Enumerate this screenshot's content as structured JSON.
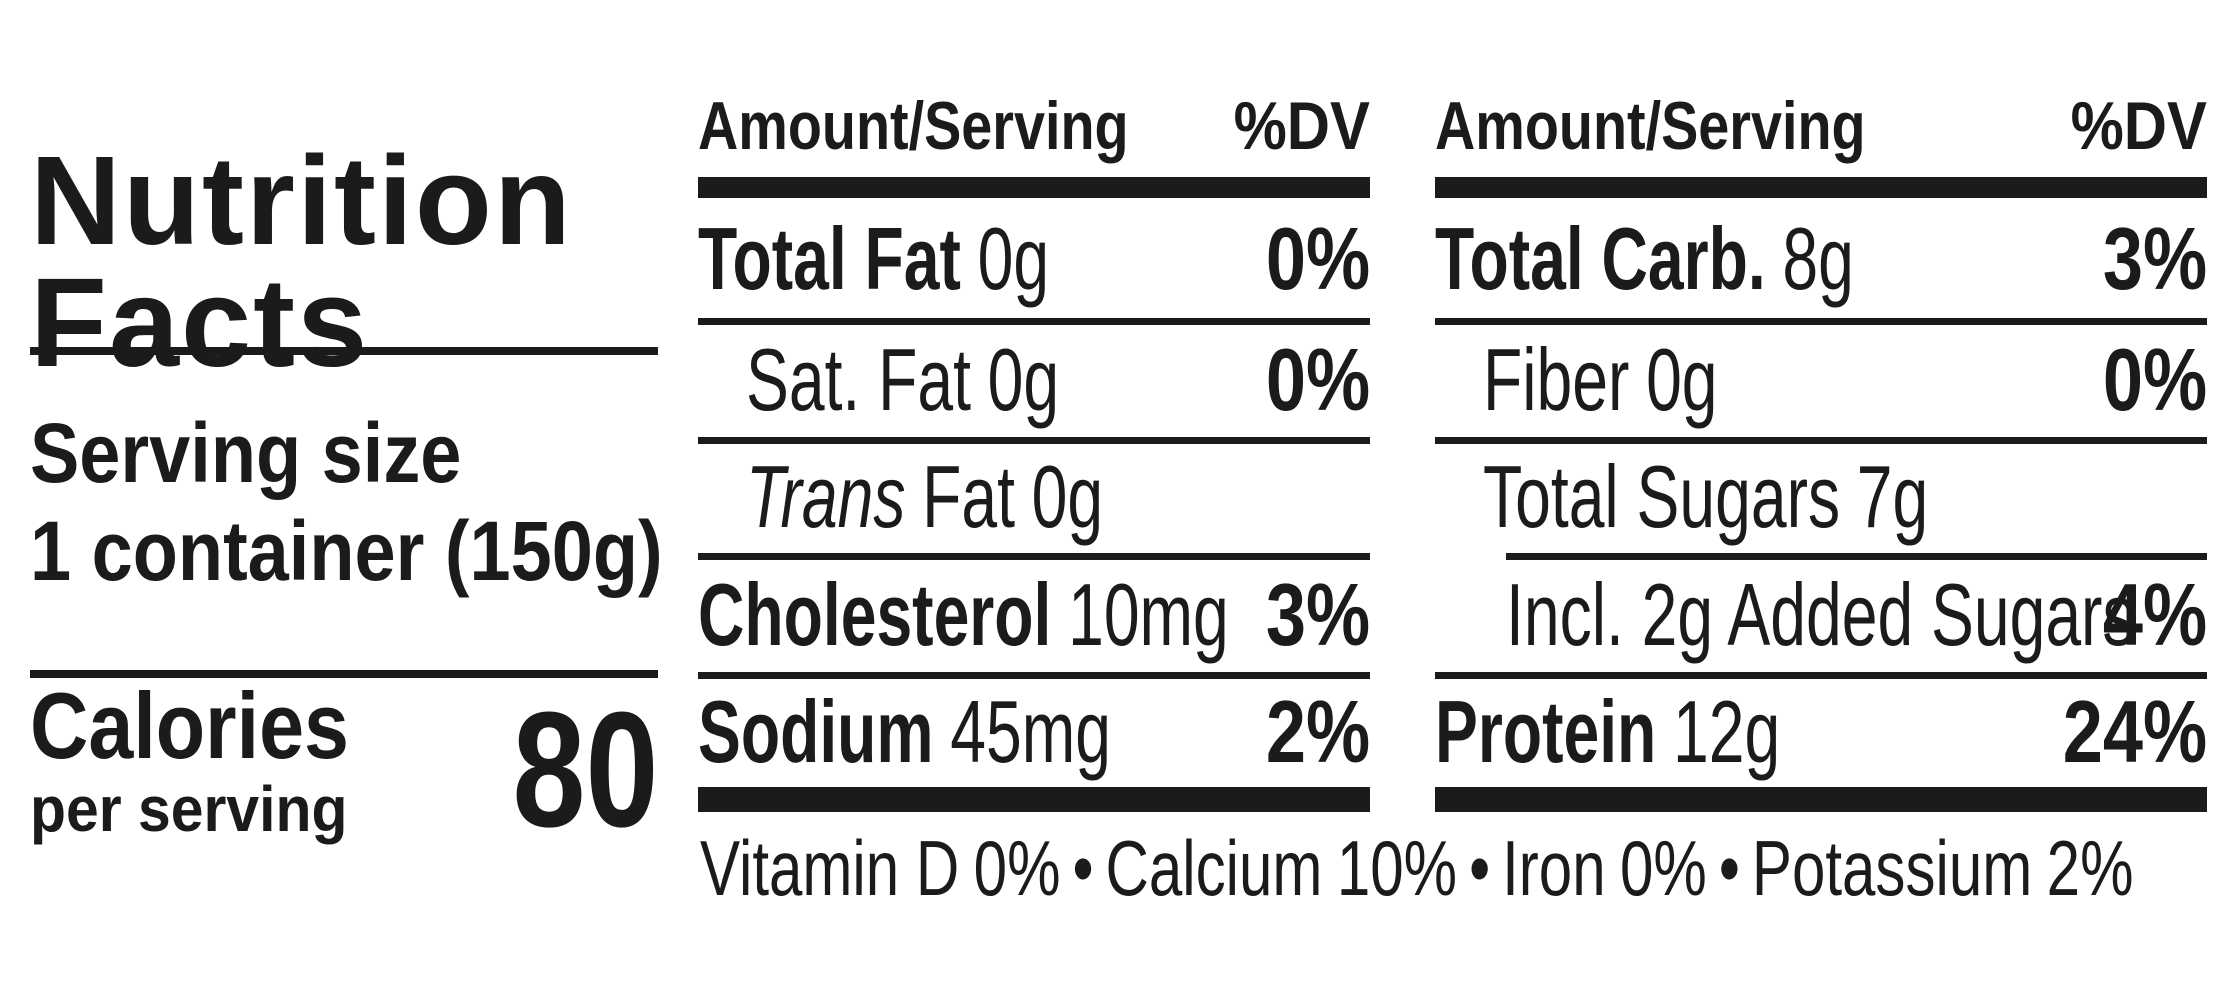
{
  "title": {
    "line1": "Nutrition",
    "line2": "Facts"
  },
  "serving": {
    "label": "Serving size",
    "value": "1 container (150g)"
  },
  "calories": {
    "label": "Calories",
    "sublabel": "per serving",
    "value": "80"
  },
  "columns": [
    {
      "header": {
        "amount": "Amount/Serving",
        "dv": "%DV"
      },
      "rows": [
        {
          "label": "Total Fat",
          "amount": "0g",
          "dv": "0%"
        },
        {
          "label": "Sat. Fat",
          "amount": "0g",
          "dv": "0%"
        },
        {
          "label_italic": "Trans",
          "label": "Fat",
          "amount": "0g",
          "dv": ""
        },
        {
          "label": "Cholesterol",
          "amount": "10mg",
          "dv": "3%"
        },
        {
          "label": "Sodium",
          "amount": "45mg",
          "dv": "2%"
        }
      ]
    },
    {
      "header": {
        "amount": "Amount/Serving",
        "dv": "%DV"
      },
      "rows": [
        {
          "label": "Total Carb.",
          "amount": "8g",
          "dv": "3%"
        },
        {
          "label": "Fiber",
          "amount": "0g",
          "dv": "0%"
        },
        {
          "label": "Total Sugars",
          "amount": "7g",
          "dv": ""
        },
        {
          "label": "Incl. 2g Added Sugars",
          "amount": "",
          "dv": "4%"
        },
        {
          "label": "Protein",
          "amount": "12g",
          "dv": "24%"
        }
      ]
    }
  ],
  "micronutrients": [
    {
      "name": "Vitamin D",
      "dv": "0%"
    },
    {
      "name": "Calcium",
      "dv": "10%"
    },
    {
      "name": "Iron",
      "dv": "0%"
    },
    {
      "name": "Potassium",
      "dv": "2%"
    }
  ],
  "separator": "•",
  "colors": {
    "ink": "#1d1b19",
    "background": "#ffffff"
  }
}
